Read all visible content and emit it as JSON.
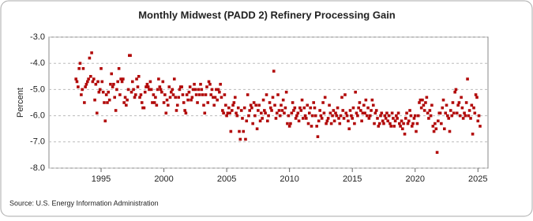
{
  "chart_data": {
    "type": "scatter",
    "title": "Monthly Midwest (PADD 2) Refinery Processing Gain",
    "y_label": "Percent",
    "source": "Source: U.S. Energy Information Administration",
    "color": "#b20a0a",
    "grid": true,
    "xlim": [
      1990.85,
      2025.8
    ],
    "ylim": [
      -8,
      -3
    ],
    "xticks": [
      1995,
      2000,
      2005,
      2010,
      2015,
      2020,
      2025
    ],
    "yticks": [
      {
        "value": -3,
        "label": "-3.0"
      },
      {
        "value": -4,
        "label": "-4.0"
      },
      {
        "value": -5,
        "label": "-5.0"
      },
      {
        "value": -6,
        "label": "-6.0"
      },
      {
        "value": -7,
        "label": "-7.0"
      },
      {
        "value": -8,
        "label": "-8.0"
      }
    ],
    "x": [
      1993.0,
      1993.08,
      1993.17,
      1993.25,
      1993.33,
      1993.42,
      1993.5,
      1993.58,
      1993.67,
      1993.75,
      1993.83,
      1993.92,
      1994.0,
      1994.08,
      1994.17,
      1994.25,
      1994.33,
      1994.42,
      1994.5,
      1994.58,
      1994.67,
      1994.75,
      1994.83,
      1994.92,
      1995.0,
      1995.08,
      1995.17,
      1995.25,
      1995.33,
      1995.42,
      1995.5,
      1995.58,
      1995.67,
      1995.75,
      1995.83,
      1995.92,
      1996.0,
      1996.08,
      1996.17,
      1996.25,
      1996.33,
      1996.42,
      1996.5,
      1996.58,
      1996.67,
      1996.75,
      1996.83,
      1996.92,
      1997.0,
      1997.08,
      1997.17,
      1997.25,
      1997.33,
      1997.42,
      1997.5,
      1997.58,
      1997.67,
      1997.75,
      1997.83,
      1997.92,
      1998.0,
      1998.08,
      1998.17,
      1998.25,
      1998.33,
      1998.42,
      1998.5,
      1998.58,
      1998.67,
      1998.75,
      1998.83,
      1998.92,
      1999.0,
      1999.08,
      1999.17,
      1999.25,
      1999.33,
      1999.42,
      1999.5,
      1999.58,
      1999.67,
      1999.75,
      1999.83,
      1999.92,
      2000.0,
      2000.08,
      2000.17,
      2000.25,
      2000.33,
      2000.42,
      2000.5,
      2000.58,
      2000.67,
      2000.75,
      2000.83,
      2000.92,
      2001.0,
      2001.08,
      2001.17,
      2001.25,
      2001.33,
      2001.42,
      2001.5,
      2001.58,
      2001.67,
      2001.75,
      2001.83,
      2001.92,
      2002.0,
      2002.08,
      2002.17,
      2002.25,
      2002.33,
      2002.42,
      2002.5,
      2002.58,
      2002.67,
      2002.75,
      2002.83,
      2002.92,
      2003.0,
      2003.08,
      2003.17,
      2003.25,
      2003.33,
      2003.42,
      2003.5,
      2003.58,
      2003.67,
      2003.75,
      2003.83,
      2003.92,
      2004.0,
      2004.08,
      2004.17,
      2004.25,
      2004.33,
      2004.42,
      2004.5,
      2004.58,
      2004.67,
      2004.75,
      2004.83,
      2004.92,
      2005.0,
      2005.08,
      2005.17,
      2005.25,
      2005.33,
      2005.42,
      2005.5,
      2005.58,
      2005.67,
      2005.75,
      2005.83,
      2005.92,
      2006.0,
      2006.08,
      2006.17,
      2006.25,
      2006.33,
      2006.42,
      2006.5,
      2006.58,
      2006.67,
      2006.75,
      2006.83,
      2006.92,
      2007.0,
      2007.08,
      2007.17,
      2007.25,
      2007.33,
      2007.42,
      2007.5,
      2007.58,
      2007.67,
      2007.75,
      2007.83,
      2007.92,
      2008.0,
      2008.08,
      2008.17,
      2008.25,
      2008.33,
      2008.42,
      2008.5,
      2008.58,
      2008.67,
      2008.75,
      2008.83,
      2008.92,
      2009.0,
      2009.08,
      2009.17,
      2009.25,
      2009.33,
      2009.42,
      2009.5,
      2009.58,
      2009.67,
      2009.75,
      2009.83,
      2009.92,
      2010.0,
      2010.08,
      2010.17,
      2010.25,
      2010.33,
      2010.42,
      2010.5,
      2010.58,
      2010.67,
      2010.75,
      2010.83,
      2010.92,
      2011.0,
      2011.08,
      2011.17,
      2011.25,
      2011.33,
      2011.42,
      2011.5,
      2011.58,
      2011.67,
      2011.75,
      2011.83,
      2011.92,
      2012.0,
      2012.08,
      2012.17,
      2012.25,
      2012.33,
      2012.42,
      2012.5,
      2012.58,
      2012.67,
      2012.75,
      2012.83,
      2012.92,
      2013.0,
      2013.08,
      2013.17,
      2013.25,
      2013.33,
      2013.42,
      2013.5,
      2013.58,
      2013.67,
      2013.75,
      2013.83,
      2013.92,
      2014.0,
      2014.08,
      2014.17,
      2014.25,
      2014.33,
      2014.42,
      2014.5,
      2014.58,
      2014.67,
      2014.75,
      2014.83,
      2014.92,
      2015.0,
      2015.08,
      2015.17,
      2015.25,
      2015.33,
      2015.42,
      2015.5,
      2015.58,
      2015.67,
      2015.75,
      2015.83,
      2015.92,
      2016.0,
      2016.08,
      2016.17,
      2016.25,
      2016.33,
      2016.42,
      2016.5,
      2016.58,
      2016.67,
      2016.75,
      2016.83,
      2016.92,
      2017.0,
      2017.08,
      2017.17,
      2017.25,
      2017.33,
      2017.42,
      2017.5,
      2017.58,
      2017.67,
      2017.75,
      2017.83,
      2017.92,
      2018.0,
      2018.08,
      2018.17,
      2018.25,
      2018.33,
      2018.42,
      2018.5,
      2018.58,
      2018.67,
      2018.75,
      2018.83,
      2018.92,
      2019.0,
      2019.08,
      2019.17,
      2019.25,
      2019.33,
      2019.42,
      2019.5,
      2019.58,
      2019.67,
      2019.75,
      2019.83,
      2019.92,
      2020.0,
      2020.08,
      2020.17,
      2020.25,
      2020.33,
      2020.42,
      2020.5,
      2020.58,
      2020.67,
      2020.75,
      2020.83,
      2020.92,
      2021.0,
      2021.08,
      2021.17,
      2021.25,
      2021.33,
      2021.42,
      2021.5,
      2021.58,
      2021.67,
      2021.75,
      2021.83,
      2021.92,
      2022.0,
      2022.08,
      2022.17,
      2022.25,
      2022.33,
      2022.42,
      2022.5,
      2022.58,
      2022.67,
      2022.75,
      2022.83,
      2022.92,
      2023.0,
      2023.08,
      2023.17,
      2023.25,
      2023.33,
      2023.42,
      2023.5,
      2023.58,
      2023.67,
      2023.75,
      2023.83,
      2023.92,
      2024.0,
      2024.08,
      2024.17,
      2024.25,
      2024.33,
      2024.42,
      2024.5,
      2024.58,
      2024.67,
      2024.75,
      2024.83,
      2024.92,
      2025.0,
      2025.08,
      2025.17
    ],
    "values": [
      -4.6,
      -4.7,
      -4.9,
      -4.2,
      -4.0,
      -5.2,
      -5.0,
      -4.2,
      -5.5,
      -4.9,
      -4.8,
      -4.7,
      -4.6,
      -3.8,
      -4.5,
      -3.6,
      -4.7,
      -4.6,
      -5.4,
      -4.8,
      -5.9,
      -4.7,
      -5.1,
      -5.0,
      -4.2,
      -4.7,
      -5.1,
      -5.5,
      -6.2,
      -5.2,
      -5.5,
      -5.1,
      -5.4,
      -4.8,
      -4.4,
      -4.9,
      -4.8,
      -5.3,
      -5.8,
      -5.0,
      -4.7,
      -4.2,
      -5.2,
      -4.6,
      -4.7,
      -4.6,
      -5.5,
      -5.3,
      -5.6,
      -5.4,
      -5.0,
      -3.7,
      -3.7,
      -5.1,
      -4.7,
      -5.0,
      -5.3,
      -5.2,
      -4.6,
      -4.9,
      -4.5,
      -5.3,
      -5.2,
      -5.5,
      -5.7,
      -5.7,
      -5.1,
      -4.9,
      -4.8,
      -4.9,
      -5.0,
      -4.7,
      -5.0,
      -5.5,
      -5.2,
      -5.5,
      -5.3,
      -5.6,
      -5.0,
      -4.6,
      -4.9,
      -5.0,
      -5.1,
      -4.7,
      -5.5,
      -5.2,
      -5.9,
      -5.4,
      -5.6,
      -4.9,
      -5.3,
      -5.1,
      -5.0,
      -5.2,
      -4.6,
      -5.3,
      -5.8,
      -5.6,
      -5.3,
      -5.0,
      -4.9,
      -4.9,
      -5.2,
      -5.5,
      -5.8,
      -5.9,
      -5.2,
      -5.4,
      -5.1,
      -4.9,
      -5.4,
      -5.3,
      -5.0,
      -4.8,
      -5.0,
      -5.2,
      -5.5,
      -5.0,
      -5.2,
      -4.8,
      -5.0,
      -5.2,
      -5.6,
      -5.9,
      -5.2,
      -4.9,
      -5.5,
      -4.7,
      -4.8,
      -5.2,
      -5.0,
      -5.3,
      -5.6,
      -5.3,
      -5.0,
      -5.4,
      -5.0,
      -5.1,
      -4.8,
      -5.3,
      -5.8,
      -5.9,
      -5.2,
      -5.6,
      -6.0,
      -5.9,
      -5.7,
      -5.9,
      -6.6,
      -5.8,
      -5.6,
      -5.5,
      -5.3,
      -5.9,
      -6.0,
      -5.7,
      -6.6,
      -6.9,
      -5.8,
      -6.1,
      -6.6,
      -5.7,
      -6.9,
      -6.2,
      -5.2,
      -6.0,
      -5.8,
      -5.6,
      -5.7,
      -6.3,
      -5.5,
      -6.0,
      -5.6,
      -6.5,
      -5.8,
      -5.6,
      -6.2,
      -5.9,
      -6.1,
      -5.4,
      -5.8,
      -5.9,
      -5.2,
      -6.2,
      -6.0,
      -5.5,
      -5.7,
      -5.8,
      -5.3,
      -4.3,
      -5.6,
      -6.1,
      -5.9,
      -5.2,
      -5.8,
      -6.0,
      -5.6,
      -5.8,
      -5.4,
      -5.9,
      -5.7,
      -5.1,
      -6.3,
      -6.0,
      -6.4,
      -6.3,
      -5.9,
      -5.5,
      -5.8,
      -5.7,
      -6.1,
      -6.0,
      -5.9,
      -6.2,
      -5.7,
      -5.8,
      -5.4,
      -6.1,
      -5.7,
      -6.0,
      -6.1,
      -5.6,
      -6.3,
      -5.9,
      -5.7,
      -6.4,
      -6.0,
      -5.5,
      -5.7,
      -6.0,
      -6.4,
      -6.8,
      -6.2,
      -5.8,
      -6.0,
      -6.1,
      -5.5,
      -5.9,
      -5.3,
      -6.3,
      -6.2,
      -6.1,
      -5.6,
      -5.9,
      -6.3,
      -6.0,
      -5.8,
      -6.2,
      -5.9,
      -6.0,
      -5.7,
      -6.1,
      -6.3,
      -6.0,
      -5.3,
      -5.8,
      -6.1,
      -5.2,
      -5.9,
      -6.0,
      -6.2,
      -6.5,
      -5.8,
      -6.0,
      -6.1,
      -5.7,
      -6.3,
      -5.1,
      -5.9,
      -6.0,
      -5.7,
      -5.5,
      -5.8,
      -6.2,
      -5.9,
      -5.6,
      -5.9,
      -5.4,
      -6.0,
      -5.7,
      -6.1,
      -6.0,
      -5.8,
      -5.4,
      -5.6,
      -6.3,
      -5.9,
      -5.8,
      -6.1,
      -6.4,
      -6.3,
      -6.0,
      -5.9,
      -6.2,
      -6.3,
      -6.0,
      -6.1,
      -5.9,
      -6.2,
      -6.0,
      -6.3,
      -6.4,
      -5.9,
      -6.1,
      -6.4,
      -6.2,
      -6.0,
      -6.1,
      -5.9,
      -6.3,
      -6.4,
      -6.2,
      -6.5,
      -6.3,
      -6.7,
      -6.1,
      -5.9,
      -6.3,
      -6.2,
      -5.8,
      -6.0,
      -6.4,
      -6.3,
      -6.1,
      -6.0,
      -6.6,
      -6.3,
      -6.0,
      -5.5,
      -5.4,
      -5.7,
      -5.4,
      -5.6,
      -5.8,
      -5.5,
      -5.3,
      -5.9,
      -6.1,
      -5.8,
      -6.0,
      -5.6,
      -6.4,
      -6.6,
      -6.3,
      -6.5,
      -7.4,
      -6.2,
      -5.9,
      -5.9,
      -6.3,
      -5.7,
      -5.4,
      -6.5,
      -5.9,
      -5.6,
      -6.0,
      -6.1,
      -6.6,
      -5.8,
      -6.0,
      -5.5,
      -5.9,
      -5.1,
      -5.0,
      -5.9,
      -5.6,
      -5.5,
      -6.0,
      -5.3,
      -5.7,
      -6.1,
      -5.9,
      -6.0,
      -5.5,
      -4.6,
      -6.0,
      -5.8,
      -6.1,
      -5.6,
      -6.7,
      -5.7,
      -5.9,
      -5.2,
      -5.3,
      -6.2,
      -6.0,
      -6.4
    ]
  }
}
